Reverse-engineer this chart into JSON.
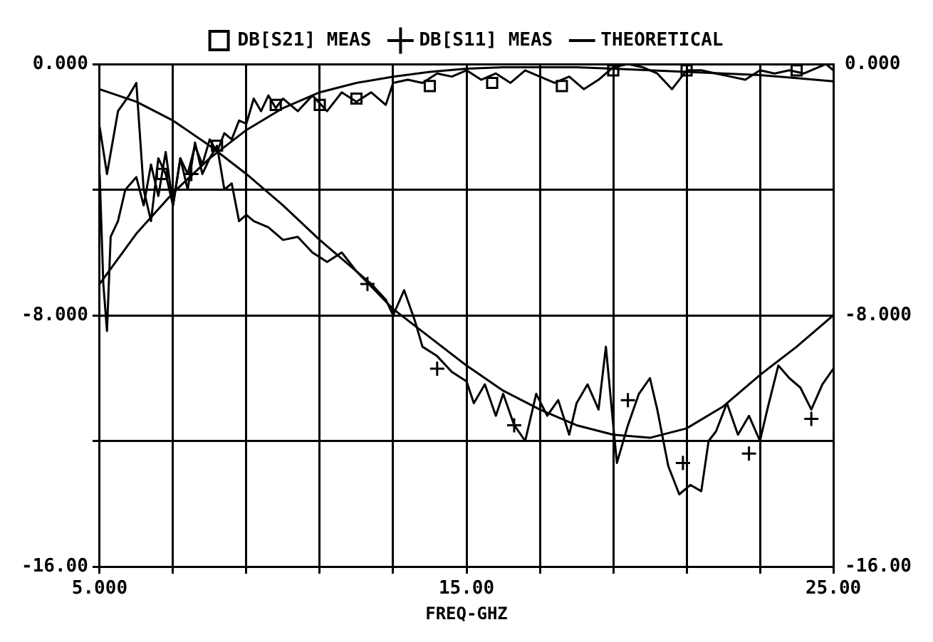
{
  "chart_data": {
    "type": "line",
    "xlabel": "FREQ-GHZ",
    "xlim": [
      5,
      25
    ],
    "xticks": [
      {
        "value": 5,
        "label": "5.000"
      },
      {
        "value": 7,
        "label": null
      },
      {
        "value": 9,
        "label": null
      },
      {
        "value": 11,
        "label": null
      },
      {
        "value": 13,
        "label": null
      },
      {
        "value": 15,
        "label": "15.00"
      },
      {
        "value": 17,
        "label": null
      },
      {
        "value": 19,
        "label": null
      },
      {
        "value": 21,
        "label": null
      },
      {
        "value": 23,
        "label": null
      },
      {
        "value": 25,
        "label": "25.00"
      }
    ],
    "ylim": [
      -16,
      0
    ],
    "yticks": [
      {
        "value": 0,
        "label": "0.000"
      },
      {
        "value": -4,
        "label": null
      },
      {
        "value": -8,
        "label": "-8.000"
      },
      {
        "value": -12,
        "label": null
      },
      {
        "value": -16,
        "label": "-16.00"
      }
    ],
    "y2lim": [
      -16,
      0
    ],
    "y2ticks": [
      {
        "value": 0,
        "label": "0.000"
      },
      {
        "value": -4,
        "label": null
      },
      {
        "value": -8,
        "label": "-8.000"
      },
      {
        "value": -12,
        "label": null
      },
      {
        "value": -16,
        "label": "-16.00"
      }
    ],
    "grid": true,
    "legend": "top",
    "series": [
      {
        "type": "line",
        "color": "#000000",
        "marker": "none",
        "x": [
          5.0,
          5.1,
          5.2,
          5.3,
          5.5,
          5.7,
          6.0,
          6.2,
          6.4,
          6.6,
          6.8,
          7.0,
          7.2,
          7.4,
          7.6,
          7.8,
          8.0,
          8.2,
          8.4,
          8.6,
          8.8,
          9.0,
          9.2,
          9.4,
          9.6,
          9.8,
          10.0,
          10.4,
          10.8,
          11.2,
          11.6,
          12.0,
          12.4,
          12.8,
          13.0,
          13.4,
          13.8,
          14.2,
          14.6,
          15.0,
          15.4,
          15.8,
          16.2,
          16.6,
          17.0,
          17.4,
          17.8,
          18.2,
          18.6,
          19.0,
          19.4,
          19.8,
          20.2,
          20.6,
          21.0,
          21.4,
          21.8,
          22.2,
          22.6,
          23.0,
          23.4,
          23.8,
          24.2,
          24.6,
          24.8,
          25.0
        ],
        "values": [
          -3.5,
          -7.0,
          -8.5,
          -5.5,
          -5.0,
          -4.0,
          -3.6,
          -4.5,
          -3.2,
          -4.2,
          -2.8,
          -4.5,
          -3.0,
          -3.5,
          -2.6,
          -3.2,
          -2.4,
          -2.8,
          -2.2,
          -2.4,
          -1.8,
          -1.9,
          -1.1,
          -1.5,
          -1.0,
          -1.4,
          -1.1,
          -1.5,
          -1.0,
          -1.5,
          -0.9,
          -1.2,
          -0.9,
          -1.3,
          -0.6,
          -0.5,
          -0.6,
          -0.3,
          -0.4,
          -0.2,
          -0.5,
          -0.3,
          -0.6,
          -0.2,
          -0.4,
          -0.6,
          -0.4,
          -0.8,
          -0.5,
          -0.1,
          0.0,
          -0.1,
          -0.3,
          -0.8,
          -0.2,
          -0.2,
          -0.3,
          -0.4,
          -0.5,
          -0.2,
          -0.3,
          -0.2,
          -0.3,
          -0.1,
          0.0,
          -0.2
        ]
      },
      {
        "type": "scatter",
        "name": "DB[S21] MEAS",
        "color": "#000000",
        "marker": "square",
        "x": [
          6.7,
          8.2,
          9.8,
          11.0,
          12.0,
          14.0,
          15.7,
          17.6,
          19.0,
          21.0,
          24.0
        ],
        "values": [
          -3.5,
          -2.6,
          -1.3,
          -1.3,
          -1.1,
          -0.7,
          -0.6,
          -0.7,
          -0.2,
          -0.2,
          -0.2
        ]
      },
      {
        "type": "line",
        "color": "#000000",
        "marker": "none",
        "x": [
          5.0,
          5.2,
          5.5,
          5.8,
          6.0,
          6.2,
          6.4,
          6.6,
          6.8,
          7.0,
          7.2,
          7.4,
          7.6,
          7.8,
          8.0,
          8.2,
          8.4,
          8.6,
          8.8,
          9.0,
          9.2,
          9.6,
          10.0,
          10.4,
          10.8,
          11.2,
          11.6,
          12.0,
          12.4,
          12.8,
          13.0,
          13.3,
          13.6,
          13.8,
          14.2,
          14.6,
          15.0,
          15.2,
          15.5,
          15.8,
          16.0,
          16.3,
          16.6,
          16.9,
          17.2,
          17.5,
          17.8,
          18.0,
          18.3,
          18.6,
          18.8,
          19.0,
          19.1,
          19.4,
          19.7,
          20.0,
          20.2,
          20.5,
          20.8,
          21.1,
          21.4,
          21.6,
          21.8,
          22.1,
          22.4,
          22.7,
          23.0,
          23.2,
          23.5,
          23.8,
          24.1,
          24.4,
          24.7,
          25.0
        ],
        "values": [
          -2.0,
          -3.5,
          -1.5,
          -1.0,
          -0.6,
          -4.0,
          -5.0,
          -3.0,
          -3.5,
          -4.5,
          -3.0,
          -4.0,
          -2.5,
          -3.5,
          -3.0,
          -2.6,
          -4.0,
          -3.8,
          -5.0,
          -4.8,
          -5.0,
          -5.2,
          -5.6,
          -5.5,
          -6.0,
          -6.3,
          -6.0,
          -6.6,
          -7.0,
          -7.5,
          -8.0,
          -7.2,
          -8.2,
          -9.0,
          -9.3,
          -9.8,
          -10.1,
          -10.8,
          -10.2,
          -11.2,
          -10.5,
          -11.5,
          -12.0,
          -10.5,
          -11.2,
          -10.7,
          -11.8,
          -10.8,
          -10.2,
          -11.0,
          -9.0,
          -11.5,
          -12.7,
          -11.5,
          -10.5,
          -10.0,
          -11.0,
          -12.8,
          -13.7,
          -13.4,
          -13.6,
          -12.0,
          -11.7,
          -10.8,
          -11.8,
          -11.2,
          -12.0,
          -11.0,
          -9.6,
          -10.0,
          -10.3,
          -11.0,
          -10.2,
          -9.7
        ]
      },
      {
        "type": "scatter",
        "name": "DB[S11] MEAS",
        "color": "#000000",
        "marker": "cross",
        "x": [
          7.5,
          12.3,
          14.2,
          16.3,
          19.4,
          20.9,
          22.7,
          24.4
        ],
        "values": [
          -3.5,
          -7.0,
          -9.7,
          -11.5,
          -10.7,
          -12.7,
          -12.4,
          -11.3
        ]
      },
      {
        "type": "line",
        "name": "THEORETICAL",
        "color": "#000000",
        "marker": "none",
        "x": [
          5,
          6,
          7,
          8,
          9,
          10,
          11,
          12,
          13,
          14,
          15,
          16,
          17,
          18,
          19,
          20,
          21,
          22,
          23,
          24,
          25
        ],
        "values": [
          -7.0,
          -5.4,
          -4.1,
          -3.0,
          -2.1,
          -1.4,
          -0.9,
          -0.6,
          -0.4,
          -0.25,
          -0.15,
          -0.1,
          -0.1,
          -0.1,
          -0.15,
          -0.2,
          -0.25,
          -0.3,
          -0.35,
          -0.45,
          -0.55
        ]
      },
      {
        "type": "line",
        "color": "#000000",
        "marker": "none",
        "x": [
          5,
          6,
          7,
          8,
          9,
          10,
          11,
          12,
          13,
          14,
          15,
          16,
          17,
          18,
          19,
          20,
          21,
          22,
          23,
          24,
          25
        ],
        "values": [
          -0.8,
          -1.2,
          -1.8,
          -2.6,
          -3.5,
          -4.5,
          -5.6,
          -6.6,
          -7.8,
          -8.7,
          -9.6,
          -10.4,
          -11.0,
          -11.5,
          -11.8,
          -11.9,
          -11.6,
          -10.9,
          -9.9,
          -9.0,
          -8.0
        ]
      }
    ]
  }
}
